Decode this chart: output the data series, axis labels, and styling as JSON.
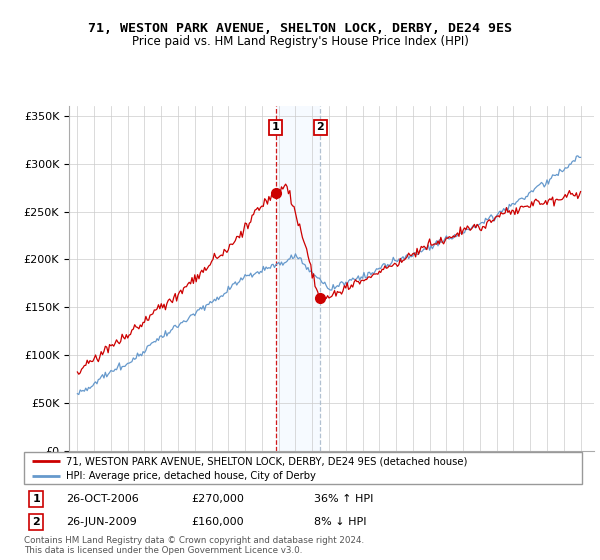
{
  "title": "71, WESTON PARK AVENUE, SHELTON LOCK, DERBY, DE24 9ES",
  "subtitle": "Price paid vs. HM Land Registry's House Price Index (HPI)",
  "legend_line1": "71, WESTON PARK AVENUE, SHELTON LOCK, DERBY, DE24 9ES (detached house)",
  "legend_line2": "HPI: Average price, detached house, City of Derby",
  "sale1_date": "26-OCT-2006",
  "sale1_price": "£270,000",
  "sale1_hpi": "36% ↑ HPI",
  "sale2_date": "26-JUN-2009",
  "sale2_price": "£160,000",
  "sale2_hpi": "8% ↓ HPI",
  "footer": "Contains HM Land Registry data © Crown copyright and database right 2024.\nThis data is licensed under the Open Government Licence v3.0.",
  "red_color": "#cc0000",
  "blue_color": "#6699cc",
  "shade_color": "#ddeeff",
  "marker1_x": 2006.82,
  "marker1_y": 270000,
  "marker2_x": 2009.48,
  "marker2_y": 160000,
  "ylim": [
    0,
    360000
  ],
  "xlim": [
    1994.5,
    2025.8
  ]
}
